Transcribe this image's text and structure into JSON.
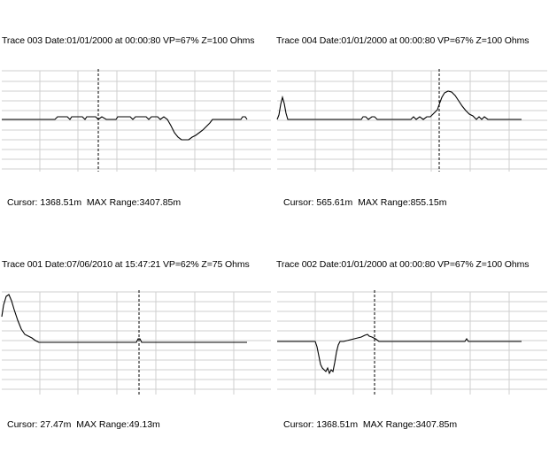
{
  "panels": [
    {
      "id": "trace-003",
      "header": "Trace 003  Date:01/01/2000 at 00:00:80  VP=67%  Z=100 Ohms",
      "cursor_label": "Cursor:",
      "cursor_value": "1368.51m",
      "max_range_label": "MAX Range:",
      "max_range_value": "3407.85m"
    },
    {
      "id": "trace-004",
      "header": "Trace 004  Date:01/01/2000 at 00:00:80  VP=67%  Z=100 Ohms",
      "cursor_label": "Cursor:",
      "cursor_value": "565.61m",
      "max_range_label": "MAX Range:",
      "max_range_value": "855.15m"
    },
    {
      "id": "trace-001",
      "header": "Trace 001  Date:07/06/2010 at 15:47:21  VP=62%  Z=75 Ohms",
      "cursor_label": "Cursor:",
      "cursor_value": "27.47m",
      "max_range_label": "MAX Range:",
      "max_range_value": "49.13m"
    },
    {
      "id": "trace-002",
      "header": "Trace 002  Date:01/01/2000 at 00:00:80  VP=67%  Z=100 Ohms",
      "cursor_label": "Cursor:",
      "cursor_value": "1368.51m",
      "max_range_label": "MAX Range:",
      "max_range_value": "3407.85m"
    }
  ]
}
